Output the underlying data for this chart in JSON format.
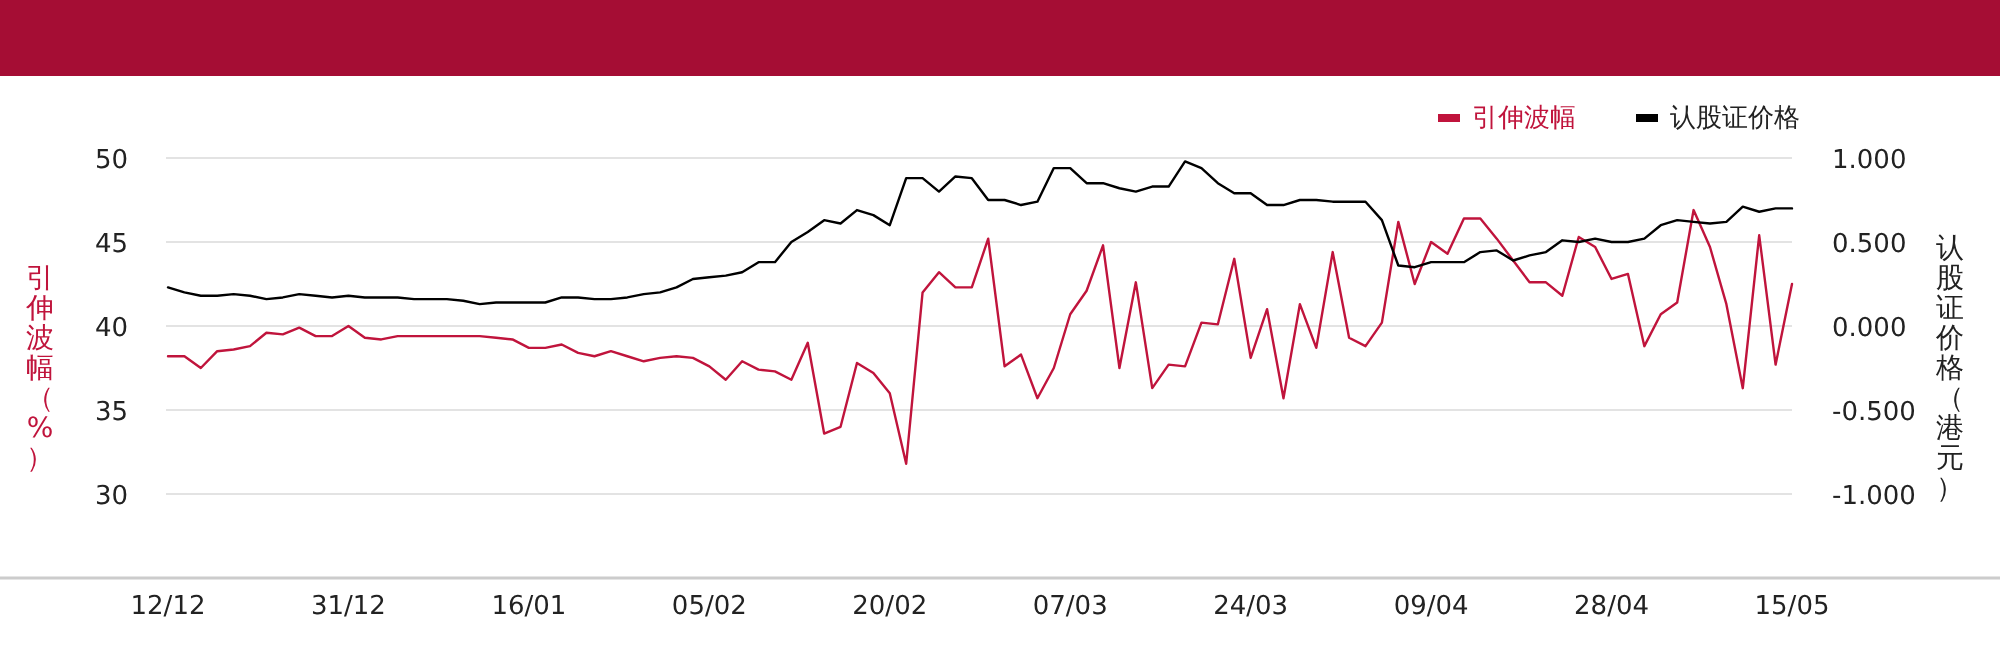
{
  "chart_data": {
    "type": "line",
    "categories": [
      "12/12",
      null,
      null,
      null,
      null,
      null,
      null,
      null,
      null,
      null,
      null,
      "31/12",
      null,
      null,
      null,
      null,
      null,
      null,
      null,
      null,
      null,
      null,
      "16/01",
      null,
      null,
      null,
      null,
      null,
      null,
      null,
      null,
      null,
      null,
      "05/02",
      null,
      null,
      null,
      null,
      null,
      null,
      null,
      null,
      null,
      null,
      "20/02",
      null,
      null,
      null,
      null,
      null,
      null,
      null,
      null,
      null,
      null,
      "07/03",
      null,
      null,
      null,
      null,
      null,
      null,
      null,
      null,
      null,
      null,
      "24/03",
      null,
      null,
      null,
      null,
      null,
      null,
      null,
      null,
      null,
      null,
      "09/04",
      null,
      null,
      null,
      null,
      null,
      null,
      null,
      null,
      null,
      null,
      "28/04",
      null,
      null,
      null,
      null,
      null,
      null,
      null,
      null,
      null,
      null,
      "15/05"
    ],
    "series": [
      {
        "name": "引伸波幅",
        "color": "#c0143c",
        "values": [
          38.2,
          38.2,
          37.5,
          38.5,
          38.6,
          38.8,
          39.6,
          39.5,
          39.9,
          39.4,
          39.4,
          40.0,
          39.3,
          39.2,
          39.4,
          39.4,
          39.4,
          39.4,
          39.4,
          39.4,
          39.3,
          39.2,
          38.7,
          38.7,
          38.9,
          38.4,
          38.2,
          38.5,
          38.2,
          37.9,
          38.1,
          38.2,
          38.1,
          37.6,
          36.8,
          37.9,
          37.4,
          37.3,
          36.8,
          39.0,
          33.6,
          34.0,
          37.8,
          37.2,
          36.0,
          31.8,
          42.0,
          43.2,
          42.3,
          42.3,
          45.2,
          37.6,
          38.3,
          35.7,
          37.5,
          40.7,
          42.1,
          44.8,
          37.5,
          42.6,
          36.3,
          37.7,
          37.6,
          40.2,
          40.1,
          44.0,
          38.1,
          41.0,
          35.7,
          41.3,
          38.7,
          44.4,
          39.3,
          38.8,
          40.2,
          46.2,
          42.5,
          45.0,
          44.3,
          46.4,
          46.4,
          45.2,
          43.9,
          42.6,
          42.6,
          41.8,
          45.3,
          44.7,
          42.8,
          43.1,
          38.8,
          40.7,
          41.4,
          46.9,
          44.7,
          41.3,
          36.3,
          45.4,
          37.7,
          42.5
        ]
      },
      {
        "name": "认股证价格",
        "color": "#000000",
        "axis": "y2",
        "values": [
          0.23,
          0.2,
          0.18,
          0.18,
          0.19,
          0.18,
          0.16,
          0.17,
          0.19,
          0.18,
          0.17,
          0.18,
          0.17,
          0.17,
          0.17,
          0.16,
          0.16,
          0.16,
          0.15,
          0.13,
          0.14,
          0.14,
          0.14,
          0.14,
          0.17,
          0.17,
          0.16,
          0.16,
          0.17,
          0.19,
          0.2,
          0.23,
          0.28,
          0.29,
          0.3,
          0.32,
          0.38,
          0.38,
          0.5,
          0.56,
          0.63,
          0.61,
          0.69,
          0.66,
          0.6,
          0.88,
          0.88,
          0.8,
          0.89,
          0.88,
          0.75,
          0.75,
          0.72,
          0.74,
          0.94,
          0.94,
          0.85,
          0.85,
          0.82,
          0.8,
          0.83,
          0.83,
          0.98,
          0.94,
          0.85,
          0.79,
          0.79,
          0.72,
          0.72,
          0.75,
          0.75,
          0.74,
          0.74,
          0.74,
          0.63,
          0.36,
          0.35,
          0.38,
          0.38,
          0.38,
          0.44,
          0.45,
          0.39,
          0.42,
          0.44,
          0.51,
          0.5,
          0.52,
          0.5,
          0.5,
          0.52,
          0.6,
          0.63,
          0.62,
          0.61,
          0.62,
          0.71,
          0.68,
          0.7,
          0.7
        ]
      }
    ],
    "ylabel": "引伸波幅（%）",
    "y2label": "认股证价格（港元）",
    "ylim": [
      25,
      50
    ],
    "yticks": [
      30,
      35,
      40,
      45,
      50
    ],
    "y2lim": [
      -1.5,
      1
    ],
    "y2ticks": [
      {
        "value": -1,
        "label": "-1.000"
      },
      {
        "value": -0.5,
        "label": "-0.500"
      },
      {
        "value": 0,
        "label": "0.000"
      },
      {
        "value": 0.5,
        "label": "0.500"
      },
      {
        "value": 1,
        "label": "1.000"
      }
    ],
    "grid": "y",
    "legend": "top right",
    "marker": "none",
    "line_style": "solid"
  }
}
